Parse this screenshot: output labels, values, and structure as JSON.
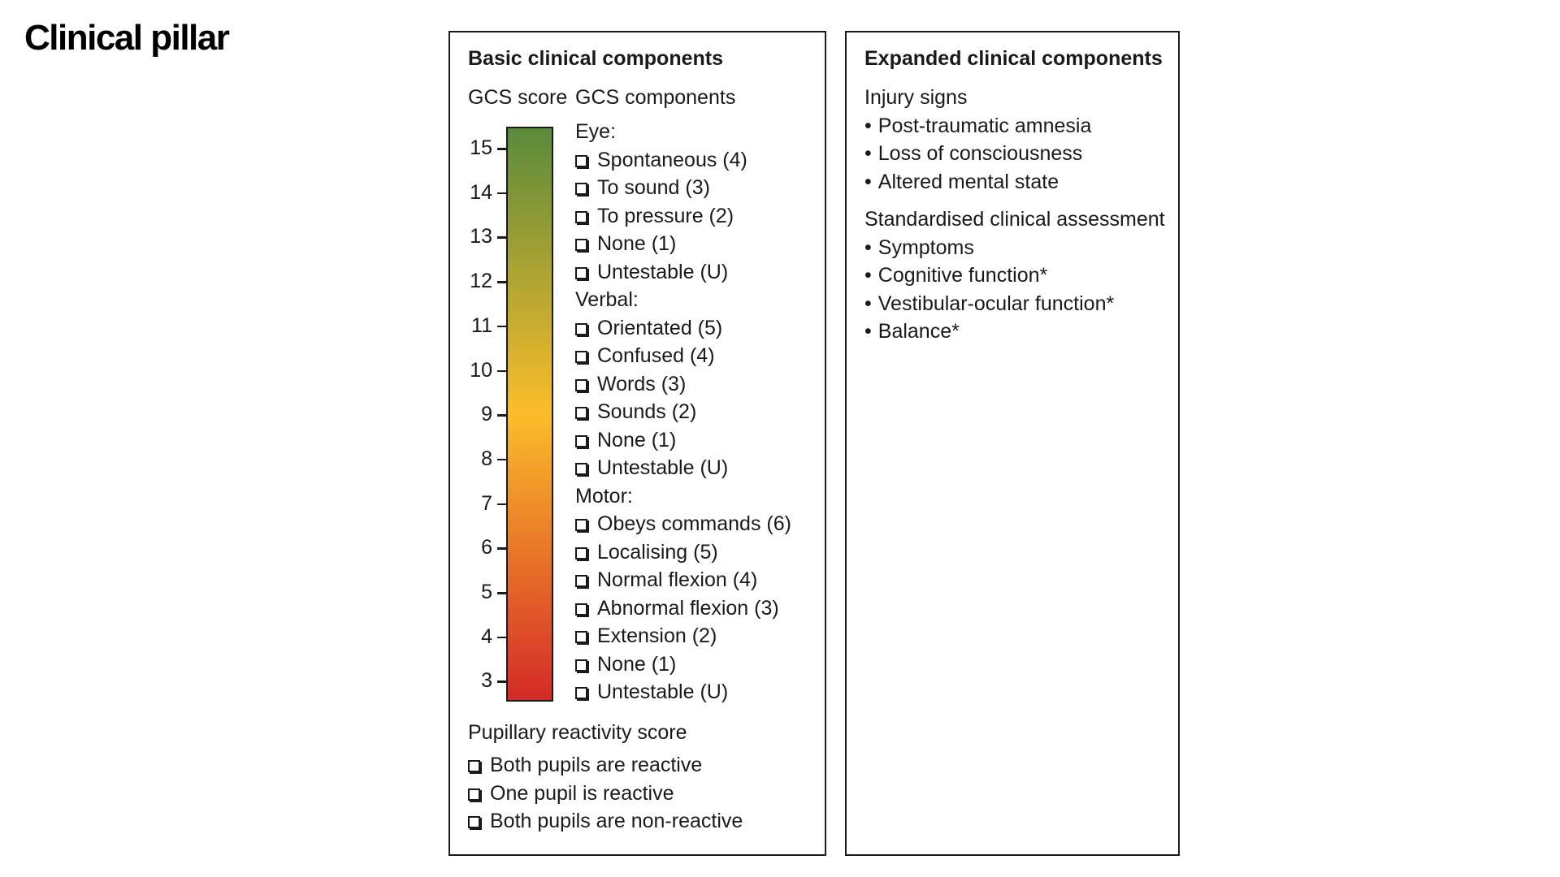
{
  "page": {
    "title": "Clinical pillar"
  },
  "basic": {
    "title": "Basic clinical components",
    "gcs_score_label": "GCS score",
    "gcs_components_label": "GCS components",
    "scale": {
      "ticks": [
        "15",
        "14",
        "13",
        "12",
        "11",
        "10",
        "9",
        "8",
        "7",
        "6",
        "5",
        "4",
        "3"
      ],
      "colors": {
        "top": "#5a8a3c",
        "middle": "#fbbd2a",
        "bottom": "#d42a27"
      }
    },
    "groups": [
      {
        "label": "Eye:",
        "items": [
          "Spontaneous (4)",
          "To sound (3)",
          "To pressure (2)",
          "None (1)",
          "Untestable (U)"
        ]
      },
      {
        "label": "Verbal:",
        "items": [
          "Orientated (5)",
          "Confused (4)",
          "Words (3)",
          "Sounds (2)",
          "None (1)",
          "Untestable (U)"
        ]
      },
      {
        "label": "Motor:",
        "items": [
          "Obeys commands (6)",
          "Localising (5)",
          "Normal flexion (4)",
          "Abnormal flexion (3)",
          "Extension (2)",
          "None (1)",
          "Untestable (U)"
        ]
      }
    ],
    "pupil_title": "Pupillary reactivity score",
    "pupil_items": [
      "Both pupils are reactive",
      "One pupil is reactive",
      "Both pupils are non-reactive"
    ]
  },
  "expanded": {
    "title": "Expanded clinical components",
    "sections": [
      {
        "heading": "Injury signs",
        "items": [
          "Post-traumatic amnesia",
          "Loss of consciousness",
          "Altered mental state"
        ]
      },
      {
        "heading": "Standardised clinical assessment",
        "items": [
          "Symptoms",
          "Cognitive function*",
          "Vestibular-ocular function*",
          "Balance*"
        ]
      }
    ]
  }
}
